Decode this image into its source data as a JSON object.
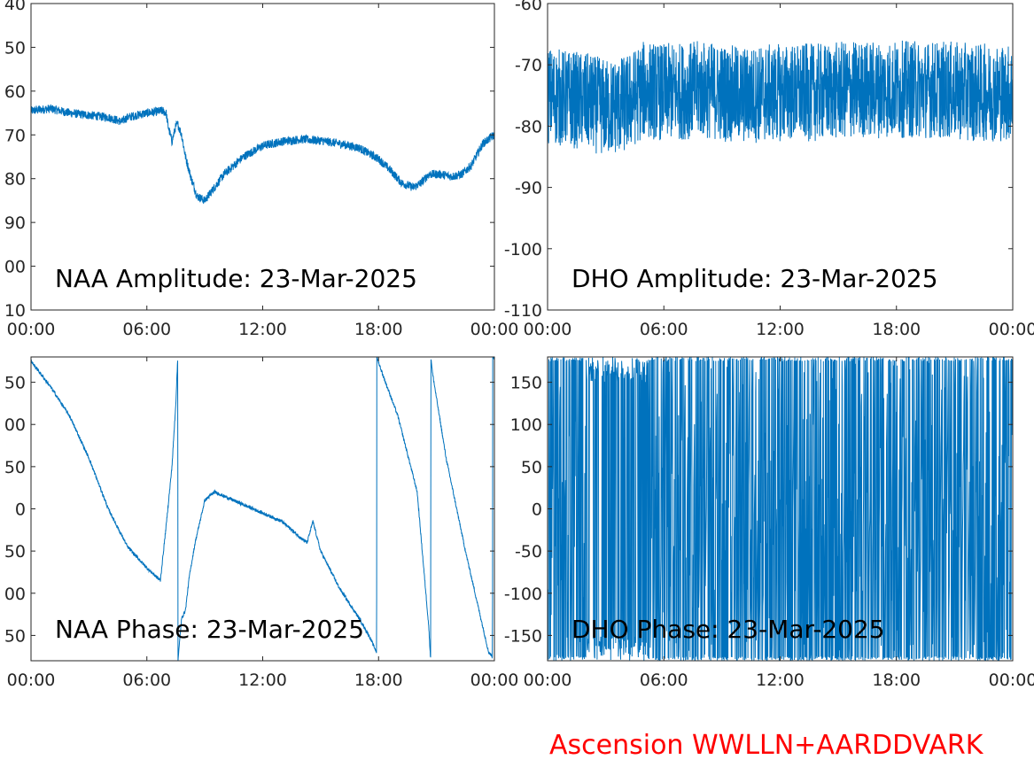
{
  "footer": {
    "text": "Ascension WWLLN+AARDDVARK",
    "color": "#ff0000"
  },
  "colors": {
    "line": "#0072bd",
    "axis": "#262626"
  },
  "chart_data": [
    {
      "type": "line",
      "title": "NAA Amplitude: 23-Mar-2025",
      "xlim": [
        "00:00",
        "24:00"
      ],
      "x_ticks": [
        "00:00",
        "06:00",
        "12:00",
        "18:00",
        "00:00"
      ],
      "ylim": [
        -110,
        -40
      ],
      "y_ticks": [
        "40",
        "50",
        "60",
        "70",
        "80",
        "90",
        "00",
        "10"
      ],
      "noise": 1.0,
      "series": [
        {
          "x_hours": [
            0,
            1,
            2,
            3,
            4,
            4.7,
            5,
            6,
            6.8,
            7.0,
            7.1,
            7.3,
            7.5,
            7.6,
            7.8,
            8.0,
            8.3,
            8.6,
            9,
            9.5,
            10,
            11,
            12,
            13,
            14,
            15,
            16,
            17,
            18,
            18.6,
            19.2,
            19.8,
            20.2,
            20.6,
            21.2,
            21.8,
            22.3,
            22.8,
            23.4,
            24
          ],
          "y": [
            -64.5,
            -64,
            -65,
            -65.5,
            -66,
            -67,
            -66,
            -65,
            -64.5,
            -65,
            -68,
            -71.5,
            -68,
            -67.5,
            -70,
            -75,
            -80,
            -84,
            -85,
            -82,
            -79,
            -75,
            -72.5,
            -71.5,
            -71,
            -71.3,
            -72,
            -73,
            -75.5,
            -78,
            -81,
            -82,
            -81,
            -79,
            -79,
            -79.5,
            -79,
            -77,
            -72,
            -70
          ]
        }
      ]
    },
    {
      "type": "line",
      "title": "DHO Amplitude: 23-Mar-2025",
      "xlim": [
        "00:00",
        "24:00"
      ],
      "x_ticks": [
        "00:00",
        "06:00",
        "12:00",
        "18:00",
        "00:00"
      ],
      "ylim": [
        -110,
        -60
      ],
      "y_ticks": [
        "-60",
        "-70",
        "-80",
        "-90",
        "-100",
        "-110"
      ],
      "noise": 8.0,
      "series": [
        {
          "x_hours": [
            0,
            2,
            3,
            4,
            5,
            6,
            8,
            10,
            12,
            14,
            16,
            18,
            20,
            22,
            24
          ],
          "y": [
            -75,
            -76,
            -77,
            -76.5,
            -74,
            -74.5,
            -74,
            -75,
            -74.5,
            -74.5,
            -74,
            -74,
            -74,
            -74.5,
            -74.5
          ]
        }
      ]
    },
    {
      "type": "line",
      "title": "NAA Phase: 23-Mar-2025",
      "xlim": [
        "00:00",
        "24:00"
      ],
      "x_ticks": [
        "00:00",
        "06:00",
        "12:00",
        "18:00",
        "00:00"
      ],
      "ylim": [
        -180,
        180
      ],
      "y_ticks": [
        "50",
        "00",
        "50",
        "0",
        "50",
        "00",
        "50"
      ],
      "noise": 2.0,
      "series": [
        {
          "x_hours": [
            0,
            1,
            2,
            3,
            4,
            5,
            6,
            6.7,
            7.0,
            7.3,
            7.5,
            7.6,
            7.61,
            7.8,
            8.0,
            8.2,
            8.5,
            9,
            9.5,
            10,
            11,
            12,
            13,
            14,
            14.3,
            14.6,
            15,
            16,
            17,
            17.5,
            17.9,
            17.91,
            18.2,
            19,
            20,
            20.6,
            20.7,
            20.71,
            20.8,
            21.5,
            22.5,
            23.2,
            23.7,
            23.9,
            23.91,
            24
          ],
          "y": [
            175,
            145,
            110,
            60,
            0,
            -45,
            -70,
            -85,
            -20,
            50,
            125,
            180,
            -180,
            -130,
            -120,
            -80,
            -40,
            10,
            20,
            15,
            5,
            -5,
            -15,
            -35,
            -40,
            -15,
            -50,
            -95,
            -130,
            -150,
            -170,
            180,
            160,
            110,
            20,
            -140,
            -180,
            180,
            160,
            60,
            -50,
            -120,
            -170,
            -175,
            180,
            180
          ]
        }
      ]
    },
    {
      "type": "line",
      "title": "DHO Phase: 23-Mar-2025",
      "xlim": [
        "00:00",
        "24:00"
      ],
      "x_ticks": [
        "00:00",
        "06:00",
        "12:00",
        "18:00",
        "00:00"
      ],
      "ylim": [
        -180,
        180
      ],
      "y_ticks": [
        "150",
        "100",
        "50",
        "0",
        "-50",
        "-100",
        "-150"
      ],
      "pattern": "wrapped phase oscillating between -180 and 180",
      "series": [
        {
          "name": "",
          "x_hours": [
            0,
            24
          ],
          "y": [
            -180,
            180
          ]
        }
      ]
    }
  ]
}
